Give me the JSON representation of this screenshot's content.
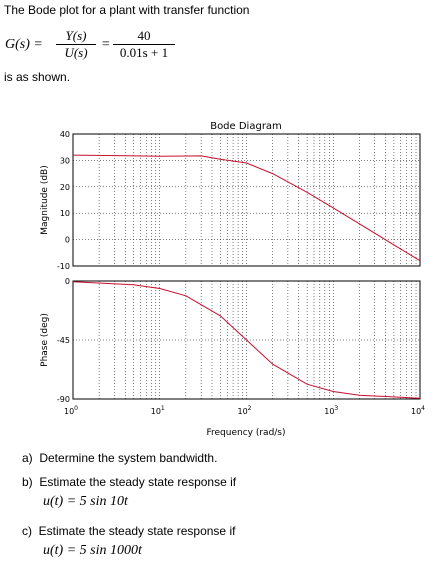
{
  "problem": {
    "intro": "The Bode plot for a plant with transfer function",
    "lhs": "G(s) =",
    "frac1_num": "Y(s)",
    "frac1_den": "U(s)",
    "equals": "=",
    "frac2_num": "40",
    "frac2_den": "0.01s + 1",
    "shown": "is as shown."
  },
  "questions": [
    {
      "label": "a)",
      "text": "Determine the system bandwidth.",
      "math": ""
    },
    {
      "label": "b)",
      "text": "Estimate the steady state response if",
      "math": "u(t) = 5 sin 10t"
    },
    {
      "label": "c)",
      "text": "Estimate the steady state response if",
      "math": "u(t) = 5 sin 1000t"
    }
  ],
  "chart_data": {
    "type": "line",
    "title": "Bode Diagram",
    "xlabel": "Frequency  (rad/s)",
    "xscale": "log",
    "xlim": [
      1,
      10000
    ],
    "x_tick_labels": [
      "10^0",
      "10^1",
      "10^2",
      "10^3",
      "10^4"
    ],
    "colors": {
      "curve": "#c8102e",
      "grid": "#000000"
    },
    "grid": true,
    "magnitude": {
      "ylabel": "Magnitude  (dB)",
      "ylim": [
        -10,
        40
      ],
      "yticks": [
        -10,
        0,
        10,
        20,
        30,
        40
      ],
      "series": {
        "x": [
          1,
          10,
          30,
          50,
          100,
          200,
          500,
          1000,
          2000,
          5000,
          10000
        ],
        "y": [
          32.0,
          31.6,
          31.7,
          30.4,
          29.0,
          25.0,
          17.9,
          12.0,
          6.0,
          -2.0,
          -8.0
        ]
      }
    },
    "phase": {
      "ylabel": "Phase  (deg)",
      "ylim": [
        -90,
        0
      ],
      "yticks": [
        0,
        -45,
        -90
      ],
      "ytick_labels": [
        "0",
        "-45",
        "-90"
      ],
      "series": {
        "x": [
          1,
          5,
          10,
          20,
          50,
          100,
          200,
          500,
          1000,
          2000,
          10000
        ],
        "y": [
          -0.6,
          -2.9,
          -5.7,
          -11.3,
          -26.6,
          -45.0,
          -63.4,
          -78.7,
          -84.3,
          -87.1,
          -89.4
        ]
      }
    }
  }
}
